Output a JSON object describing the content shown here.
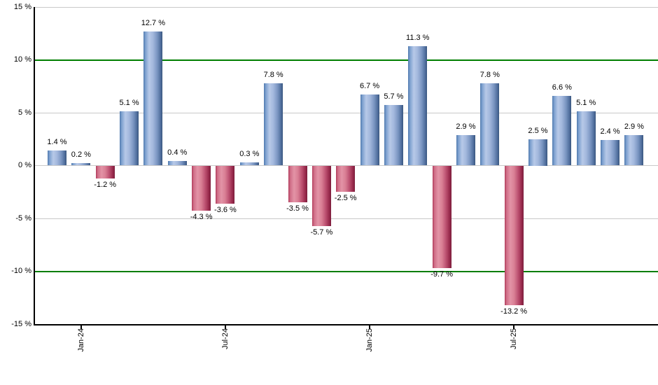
{
  "chart_data": {
    "type": "bar",
    "title": "",
    "xlabel": "",
    "ylabel": "",
    "unit": "%",
    "ylim": [
      -15,
      15
    ],
    "grid": true,
    "legend_position": "none",
    "y_ticks": [
      {
        "value": 15,
        "label": "15 %"
      },
      {
        "value": 10,
        "label": "10 %"
      },
      {
        "value": 5,
        "label": "5 %"
      },
      {
        "value": 0,
        "label": "0 %"
      },
      {
        "value": -5,
        "label": "-5 %"
      },
      {
        "value": -10,
        "label": "-10 %"
      },
      {
        "value": -15,
        "label": "-15 %"
      }
    ],
    "highlight_gridlines": [
      10,
      -10
    ],
    "bars": [
      {
        "value": 1.4,
        "label": "1.4 %"
      },
      {
        "value": 0.2,
        "label": "0.2 %"
      },
      {
        "value": -1.2,
        "label": "-1.2 %"
      },
      {
        "value": 5.1,
        "label": "5.1 %"
      },
      {
        "value": 12.7,
        "label": "12.7 %"
      },
      {
        "value": 0.4,
        "label": "0.4 %"
      },
      {
        "value": -4.3,
        "label": "-4.3 %"
      },
      {
        "value": -3.6,
        "label": "-3.6 %"
      },
      {
        "value": 0.3,
        "label": "0.3 %"
      },
      {
        "value": 7.8,
        "label": "7.8 %"
      },
      {
        "value": -3.5,
        "label": "-3.5 %"
      },
      {
        "value": -5.7,
        "label": "-5.7 %"
      },
      {
        "value": -2.5,
        "label": "-2.5 %"
      },
      {
        "value": 6.7,
        "label": "6.7 %"
      },
      {
        "value": 5.7,
        "label": "5.7 %"
      },
      {
        "value": 11.3,
        "label": "11.3 %"
      },
      {
        "value": -9.7,
        "label": "-9.7 %"
      },
      {
        "value": 2.9,
        "label": "2.9 %"
      },
      {
        "value": 7.8,
        "label": "7.8 %"
      },
      {
        "value": -13.2,
        "label": "-13.2 %"
      },
      {
        "value": 2.5,
        "label": "2.5 %"
      },
      {
        "value": 6.6,
        "label": "6.6 %"
      },
      {
        "value": 5.1,
        "label": "5.1 %"
      },
      {
        "value": 2.4,
        "label": "2.4 %"
      },
      {
        "value": 2.9,
        "label": "2.9 %"
      }
    ],
    "x_ticks": [
      {
        "label": "Jan-24",
        "bar_index": 1
      },
      {
        "label": "Jul-24",
        "bar_index": 7
      },
      {
        "label": "Jan-25",
        "bar_index": 13
      },
      {
        "label": "Jul-25",
        "bar_index": 19
      }
    ],
    "colors": {
      "positive_bar": "#7ba0d0",
      "negative_bar": "#c04a6a",
      "highlight_line": "#007e00",
      "gridline": "#c9c9c9",
      "axis": "#000000",
      "label_text": "#000000",
      "background": "#ffffff"
    }
  }
}
